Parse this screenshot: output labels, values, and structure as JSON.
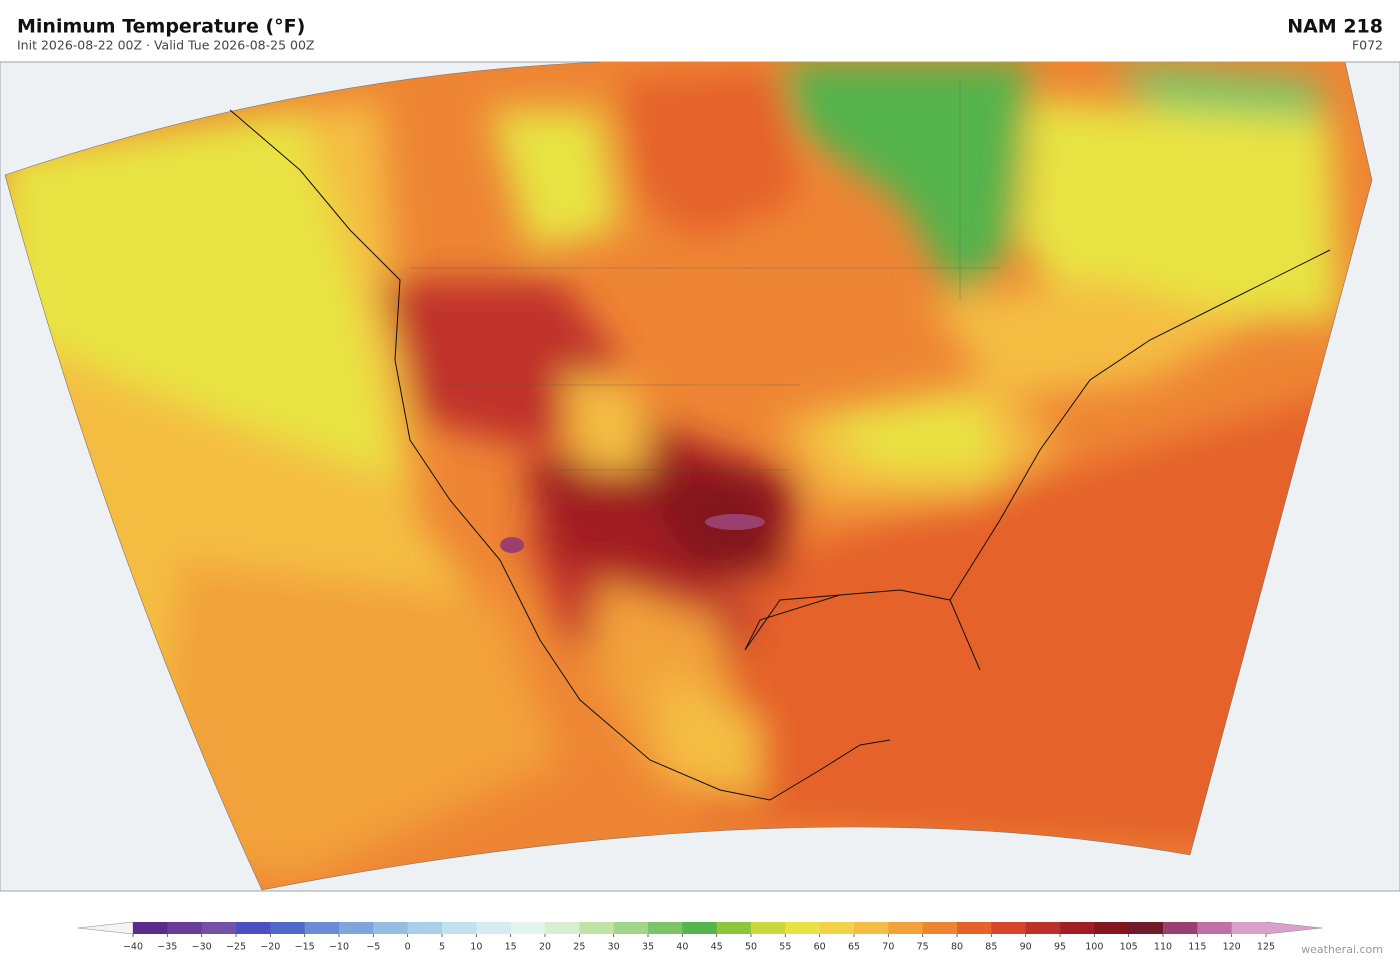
{
  "header": {
    "title": "Minimum Temperature  (°F)",
    "subtitle": "Init 2026-08-22 00Z  ·  Valid Tue 2026-08-25 00Z",
    "model": "NAM  218",
    "forecast_hour": "F072"
  },
  "colorbar": {
    "ticks": [
      {
        "value": -40,
        "label": "−40"
      },
      {
        "value": -35,
        "label": "−35"
      },
      {
        "value": -30,
        "label": "−30"
      },
      {
        "value": -25,
        "label": "−25"
      },
      {
        "value": -20,
        "label": "−20"
      },
      {
        "value": -15,
        "label": "−15"
      },
      {
        "value": -10,
        "label": "−10"
      },
      {
        "value": -5,
        "label": "−5"
      },
      0,
      5,
      10,
      15,
      20,
      25,
      30,
      35,
      40,
      45,
      50,
      55,
      60,
      65,
      70,
      75,
      80,
      85,
      90,
      95,
      100,
      105,
      110,
      115,
      120,
      125
    ],
    "colors": [
      "#5b2a8c",
      "#6a3d9a",
      "#7450a8",
      "#4d4ec0",
      "#5068c8",
      "#6a8bd6",
      "#7fa6dc",
      "#94bfe3",
      "#a9d0ea",
      "#c2e0ef",
      "#d6ebf2",
      "#e3f3ef",
      "#d7efd0",
      "#c0e4a6",
      "#a2d68a",
      "#7cc468",
      "#55b44b",
      "#8cc63f",
      "#c8d93c",
      "#e8e342",
      "#f2d347",
      "#f4bd43",
      "#f2a23b",
      "#ee8534",
      "#e5622b",
      "#d8462a",
      "#c0302a",
      "#a11f24",
      "#82171f",
      "#6e1a28",
      "#9b3f6e",
      "#c070a6",
      "#d9a0cc"
    ],
    "extend_colors": [
      "#f4f4f4",
      "#d9a0cc"
    ]
  },
  "credit": "weatherai.com"
}
